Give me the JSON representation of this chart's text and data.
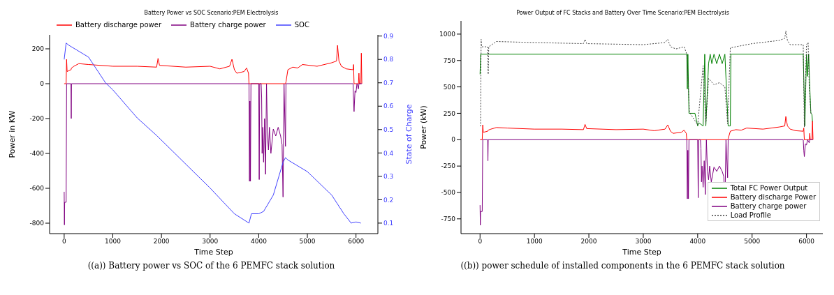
{
  "chart_data": [
    {
      "type": "line",
      "title": "Battery Power vs SOC Scenario:PEM Electrolysis",
      "xlabel": "Time Step",
      "ylabel": "Power in KW",
      "y2label": "State of Charge",
      "xlim": [
        -300,
        6450
      ],
      "xticks": [
        0,
        1000,
        2000,
        3000,
        4000,
        5000,
        6000
      ],
      "ylim": [
        -860,
        280
      ],
      "yticks": [
        -800,
        -600,
        -400,
        -200,
        0,
        200
      ],
      "y2lim": [
        0.055,
        0.905
      ],
      "y2ticks": [
        0.1,
        0.2,
        0.3,
        0.4,
        0.5,
        0.6,
        0.7,
        0.8,
        0.9
      ],
      "grid": false,
      "legend": "top left",
      "marker": "none",
      "line_style": "solid",
      "annotations": [
        "((a)) Battery power vs SOC of the 6 PEMFC stack solution"
      ],
      "series": [
        {
          "name": "Battery discharge power",
          "color": "#ff0000",
          "x": [
            0,
            40,
            50,
            60,
            100,
            140,
            150,
            200,
            300,
            500,
            1000,
            1500,
            1900,
            1930,
            1960,
            2500,
            3000,
            3200,
            3400,
            3450,
            3500,
            3550,
            3700,
            3750,
            3790,
            3800,
            4550,
            4560,
            4600,
            4700,
            4800,
            4900,
            5200,
            5500,
            5600,
            5620,
            5650,
            5700,
            5800,
            5940,
            5950,
            5960,
            6050,
            6060,
            6070,
            6100,
            6110,
            6120
          ],
          "values": [
            0,
            0,
            140,
            70,
            75,
            80,
            90,
            100,
            115,
            110,
            100,
            100,
            95,
            145,
            105,
            95,
            100,
            85,
            100,
            140,
            80,
            60,
            70,
            90,
            60,
            0,
            0,
            10,
            80,
            95,
            90,
            110,
            100,
            120,
            130,
            220,
            130,
            100,
            85,
            80,
            110,
            0,
            0,
            60,
            0,
            0,
            175,
            0
          ]
        },
        {
          "name": "Battery charge power",
          "color": "#800080",
          "x": [
            0,
            5,
            10,
            40,
            50,
            140,
            145,
            150,
            3800,
            3810,
            3820,
            3830,
            3840,
            4000,
            4010,
            4020,
            4050,
            4060,
            4070,
            4080,
            4100,
            4120,
            4140,
            4160,
            4180,
            4200,
            4220,
            4250,
            4300,
            4350,
            4400,
            4450,
            4480,
            4500,
            4520,
            4550,
            4560,
            5940,
            5950,
            5960,
            5980,
            6000,
            6020,
            6050,
            6060,
            6120
          ],
          "values": [
            -620,
            -810,
            -680,
            -680,
            0,
            0,
            -200,
            0,
            0,
            -560,
            -100,
            -560,
            0,
            0,
            -550,
            0,
            0,
            -80,
            -400,
            -250,
            -450,
            -200,
            -520,
            0,
            -300,
            -380,
            -250,
            -400,
            -260,
            -300,
            -250,
            -300,
            -350,
            -650,
            0,
            -360,
            0,
            0,
            -100,
            -160,
            -40,
            -50,
            0,
            -30,
            0,
            0
          ]
        },
        {
          "name": "SOC",
          "color": "#4040ff",
          "axis": "y2",
          "x": [
            0,
            40,
            100,
            500,
            850,
            1000,
            1500,
            1900,
            3000,
            3500,
            3800,
            3850,
            4000,
            4100,
            4300,
            4500,
            4550,
            4600,
            5000,
            5500,
            5750,
            5900,
            6000,
            6100
          ],
          "values": [
            0.8,
            0.87,
            0.86,
            0.81,
            0.7,
            0.67,
            0.55,
            0.475,
            0.25,
            0.14,
            0.1,
            0.14,
            0.14,
            0.15,
            0.22,
            0.36,
            0.38,
            0.37,
            0.32,
            0.22,
            0.14,
            0.1,
            0.105,
            0.1
          ]
        }
      ]
    },
    {
      "type": "line",
      "title": "Power Output of FC Stacks and Battery Over Time Scenario:PEM Electrolysis",
      "xlabel": "Time Step",
      "ylabel": "Power (kW)",
      "xlim": [
        -350,
        6300
      ],
      "xticks": [
        0,
        1000,
        2000,
        3000,
        4000,
        5000,
        6000
      ],
      "ylim": [
        -890,
        1125
      ],
      "yticks": [
        -750,
        -500,
        -250,
        0,
        250,
        500,
        750,
        1000
      ],
      "grid": false,
      "legend": "bottom right",
      "marker": "none",
      "annotations": [
        "((b)) power schedule of installed components in the 6 PEMFC stack solution"
      ],
      "series": [
        {
          "name": "Total FC Power Output",
          "color": "#008000",
          "x": [
            0,
            10,
            3800,
            3810,
            3820,
            3840,
            3950,
            4000,
            4020,
            4100,
            4130,
            4150,
            4200,
            4230,
            4260,
            4300,
            4350,
            4400,
            4450,
            4500,
            4560,
            4600,
            4610,
            5940,
            5950,
            5970,
            6000,
            6020,
            6040,
            6060,
            6080,
            6100,
            6110
          ],
          "values": [
            620,
            810,
            810,
            480,
            810,
            250,
            250,
            130,
            160,
            130,
            810,
            130,
            720,
            810,
            720,
            810,
            720,
            810,
            720,
            810,
            130,
            130,
            810,
            810,
            570,
            130,
            810,
            600,
            810,
            500,
            250,
            240,
            170
          ]
        },
        {
          "name": "Battery discharge Power",
          "color": "#ff0000",
          "x": [
            0,
            40,
            50,
            60,
            100,
            140,
            150,
            200,
            300,
            500,
            1000,
            1500,
            1900,
            1930,
            1960,
            2500,
            3000,
            3200,
            3400,
            3450,
            3500,
            3550,
            3700,
            3750,
            3790,
            3800,
            4550,
            4560,
            4600,
            4700,
            4800,
            4900,
            5200,
            5500,
            5600,
            5620,
            5650,
            5700,
            5800,
            5940,
            5950,
            5960,
            6050,
            6060,
            6070,
            6100,
            6110,
            6120
          ],
          "values": [
            0,
            0,
            140,
            70,
            75,
            80,
            90,
            100,
            115,
            110,
            100,
            100,
            95,
            145,
            105,
            95,
            100,
            85,
            100,
            140,
            80,
            60,
            70,
            90,
            60,
            0,
            0,
            10,
            80,
            95,
            90,
            110,
            100,
            120,
            130,
            220,
            130,
            100,
            85,
            80,
            110,
            0,
            0,
            60,
            0,
            0,
            175,
            0
          ]
        },
        {
          "name": "Battery charge power",
          "color": "#800080",
          "x": [
            0,
            5,
            10,
            40,
            50,
            140,
            145,
            150,
            3800,
            3810,
            3820,
            3830,
            3840,
            4000,
            4010,
            4020,
            4050,
            4060,
            4070,
            4080,
            4100,
            4120,
            4140,
            4160,
            4180,
            4200,
            4220,
            4250,
            4300,
            4350,
            4400,
            4450,
            4480,
            4500,
            4520,
            4550,
            4560,
            5940,
            5950,
            5960,
            5980,
            6000,
            6020,
            6050,
            6060,
            6120
          ],
          "values": [
            -620,
            -810,
            -680,
            -680,
            0,
            0,
            -200,
            0,
            0,
            -560,
            -100,
            -560,
            0,
            0,
            -550,
            0,
            0,
            -80,
            -400,
            -250,
            -450,
            -200,
            -520,
            0,
            -300,
            -380,
            -250,
            -400,
            -260,
            -300,
            -250,
            -300,
            -350,
            -650,
            0,
            -360,
            0,
            0,
            -100,
            -160,
            -40,
            -50,
            0,
            -30,
            0,
            0
          ]
        },
        {
          "name": "Load Profile",
          "color": "#404040",
          "line_style": "dotted",
          "x": [
            0,
            10,
            20,
            30,
            140,
            150,
            160,
            300,
            1000,
            1900,
            1930,
            1960,
            3000,
            3400,
            3450,
            3500,
            3600,
            3750,
            3800,
            3850,
            4000,
            4100,
            4150,
            4200,
            4300,
            4400,
            4500,
            4550,
            4600,
            5000,
            5500,
            5600,
            5620,
            5650,
            5700,
            5940,
            5960,
            6000,
            6030,
            6050,
            6080,
            6100
          ],
          "values": [
            130,
            130,
            950,
            880,
            880,
            620,
            880,
            930,
            920,
            910,
            950,
            910,
            900,
            920,
            950,
            880,
            860,
            880,
            810,
            260,
            140,
            700,
            150,
            580,
            520,
            540,
            500,
            150,
            870,
            910,
            940,
            960,
            1030,
            940,
            900,
            900,
            120,
            900,
            920,
            500,
            250,
            250
          ]
        }
      ]
    }
  ]
}
